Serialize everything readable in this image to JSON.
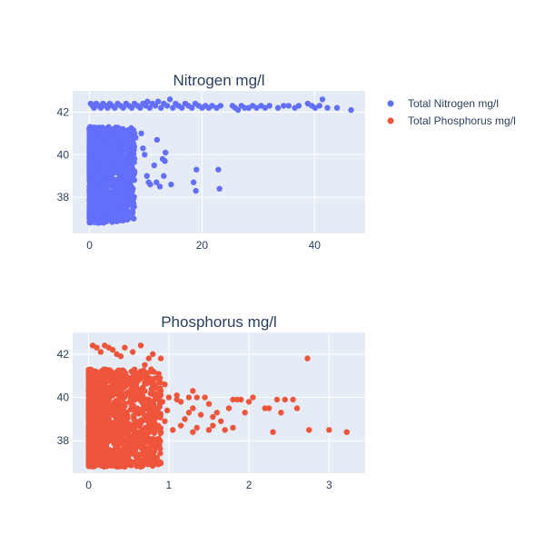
{
  "chart_data": [
    {
      "type": "scatter",
      "title": "Nitrogen mg/l",
      "xlabel": "",
      "ylabel": "",
      "xlim": [
        -3,
        49
      ],
      "ylim": [
        36.3,
        43.0
      ],
      "xticks": [
        0,
        20,
        40
      ],
      "yticks": [
        38,
        40,
        42
      ],
      "grid": true,
      "series": [
        {
          "name": "Total Nitrogen mg/l",
          "color": "#636efa",
          "points": [
            [
              0.2,
              42.4
            ],
            [
              0.5,
              42.3
            ],
            [
              0.8,
              42.2
            ],
            [
              1.2,
              42.4
            ],
            [
              1.6,
              42.3
            ],
            [
              2.0,
              42.2
            ],
            [
              2.4,
              42.4
            ],
            [
              2.8,
              42.3
            ],
            [
              3.2,
              42.2
            ],
            [
              3.6,
              42.4
            ],
            [
              4.0,
              42.3
            ],
            [
              4.5,
              42.2
            ],
            [
              5.0,
              42.4
            ],
            [
              5.5,
              42.3
            ],
            [
              6.0,
              42.2
            ],
            [
              6.5,
              42.4
            ],
            [
              7.0,
              42.3
            ],
            [
              7.5,
              42.2
            ],
            [
              8.0,
              42.4
            ],
            [
              8.5,
              42.3
            ],
            [
              9.0,
              42.2
            ],
            [
              9.5,
              42.4
            ],
            [
              10.0,
              42.3
            ],
            [
              10.3,
              42.5
            ],
            [
              10.7,
              42.2
            ],
            [
              11.2,
              42.4
            ],
            [
              11.7,
              42.3
            ],
            [
              12.2,
              42.5
            ],
            [
              12.7,
              42.2
            ],
            [
              13.2,
              42.4
            ],
            [
              13.8,
              42.3
            ],
            [
              14.3,
              42.6
            ],
            [
              14.8,
              42.2
            ],
            [
              15.3,
              42.4
            ],
            [
              15.8,
              42.3
            ],
            [
              16.4,
              42.2
            ],
            [
              17.0,
              42.4
            ],
            [
              17.6,
              42.3
            ],
            [
              18.2,
              42.2
            ],
            [
              18.8,
              42.4
            ],
            [
              19.4,
              42.3
            ],
            [
              20.0,
              42.2
            ],
            [
              20.6,
              42.3
            ],
            [
              21.2,
              42.2
            ],
            [
              21.8,
              42.3
            ],
            [
              22.6,
              42.2
            ],
            [
              23.3,
              42.3
            ],
            [
              25.4,
              42.3
            ],
            [
              25.9,
              42.2
            ],
            [
              26.4,
              42.1
            ],
            [
              27.0,
              42.3
            ],
            [
              27.6,
              42.2
            ],
            [
              28.3,
              42.2
            ],
            [
              29.0,
              42.3
            ],
            [
              29.7,
              42.2
            ],
            [
              30.5,
              42.3
            ],
            [
              31.2,
              42.2
            ],
            [
              32.0,
              42.3
            ],
            [
              33.5,
              42.2
            ],
            [
              34.5,
              42.3
            ],
            [
              35.4,
              42.3
            ],
            [
              36.5,
              42.2
            ],
            [
              37.2,
              42.3
            ],
            [
              38.8,
              42.4
            ],
            [
              39.5,
              42.3
            ],
            [
              40.1,
              42.2
            ],
            [
              40.9,
              42.3
            ],
            [
              41.4,
              42.6
            ],
            [
              42.3,
              42.2
            ],
            [
              44.0,
              42.2
            ],
            [
              46.5,
              42.1
            ],
            [
              22.9,
              39.3
            ],
            [
              19.0,
              39.3
            ],
            [
              18.5,
              38.7
            ],
            [
              18.9,
              38.3
            ],
            [
              23.1,
              38.4
            ],
            [
              14.5,
              38.6
            ],
            [
              13.2,
              39.0
            ],
            [
              11.9,
              38.7
            ],
            [
              13.4,
              39.7
            ],
            [
              13.5,
              40.1
            ],
            [
              13.0,
              39.8
            ],
            [
              12.0,
              40.7
            ],
            [
              11.5,
              39.5
            ],
            [
              12.5,
              38.5
            ],
            [
              9.8,
              40.0
            ],
            [
              10.2,
              39.0
            ],
            [
              10.8,
              38.6
            ],
            [
              10.5,
              38.7
            ],
            [
              9.5,
              40.3
            ],
            [
              9.2,
              41.0
            ],
            [
              8.2,
              40.8
            ],
            [
              8.0,
              39.2
            ],
            [
              7.5,
              38.9
            ],
            [
              7.6,
              40.5
            ],
            [
              6.8,
              40.2
            ],
            [
              6.5,
              38.3
            ],
            [
              6.0,
              37.8
            ],
            [
              7.8,
              37.9
            ],
            [
              5.8,
              37.3
            ],
            [
              4.5,
              37.5
            ],
            [
              3.5,
              37.0
            ],
            [
              2.5,
              36.8
            ],
            [
              3.4,
              41.3
            ],
            [
              4.8,
              41.0
            ],
            [
              3.3,
              40.6
            ],
            [
              5.8,
              41.0
            ],
            [
              8.0,
              41.0
            ],
            [
              0.6,
              38.0
            ],
            [
              5.3,
              38.4
            ]
          ]
        },
        {
          "name": "Total Phosphorus mg/l",
          "color": "#ef553b",
          "points": []
        }
      ],
      "dense_region": {
        "x": [
          0,
          8
        ],
        "y": [
          36.8,
          41.3
        ]
      }
    },
    {
      "type": "scatter",
      "title": "Phosphorus mg/l",
      "xlabel": "",
      "ylabel": "",
      "xlim": [
        -0.2,
        3.45
      ],
      "ylim": [
        36.5,
        43.0
      ],
      "xticks": [
        0,
        1,
        2,
        3
      ],
      "yticks": [
        38,
        40,
        42
      ],
      "grid": true,
      "series": [
        {
          "name": "Total Phosphorus mg/l",
          "color": "#ef553b",
          "points": [
            [
              0.05,
              42.4
            ],
            [
              0.1,
              42.3
            ],
            [
              0.15,
              42.1
            ],
            [
              0.2,
              42.4
            ],
            [
              0.25,
              42.3
            ],
            [
              0.3,
              42.2
            ],
            [
              0.35,
              42.0
            ],
            [
              0.4,
              41.9
            ],
            [
              0.45,
              42.3
            ],
            [
              0.55,
              42.1
            ],
            [
              0.65,
              42.4
            ],
            [
              0.75,
              41.8
            ],
            [
              0.8,
              42.0
            ],
            [
              0.9,
              41.8
            ],
            [
              0.7,
              41.5
            ],
            [
              0.65,
              41.2
            ],
            [
              0.6,
              41.0
            ],
            [
              2.73,
              41.8
            ],
            [
              3.22,
              38.4
            ],
            [
              3.0,
              38.5
            ],
            [
              2.75,
              38.5
            ],
            [
              2.6,
              39.5
            ],
            [
              2.55,
              39.9
            ],
            [
              2.45,
              39.9
            ],
            [
              2.35,
              39.9
            ],
            [
              2.4,
              39.3
            ],
            [
              2.3,
              38.4
            ],
            [
              2.25,
              39.5
            ],
            [
              2.2,
              39.5
            ],
            [
              2.05,
              40.0
            ],
            [
              2.0,
              39.8
            ],
            [
              1.95,
              39.3
            ],
            [
              1.9,
              39.9
            ],
            [
              1.85,
              39.9
            ],
            [
              1.8,
              39.9
            ],
            [
              1.8,
              38.6
            ],
            [
              1.75,
              39.5
            ],
            [
              1.7,
              38.5
            ],
            [
              1.65,
              38.9
            ],
            [
              1.6,
              39.3
            ],
            [
              1.55,
              38.7
            ],
            [
              1.55,
              39.1
            ],
            [
              1.5,
              39.7
            ],
            [
              1.5,
              38.5
            ],
            [
              1.45,
              40.0
            ],
            [
              1.4,
              39.2
            ],
            [
              1.35,
              38.6
            ],
            [
              1.35,
              40.0
            ],
            [
              1.3,
              39.5
            ],
            [
              1.3,
              38.4
            ],
            [
              1.25,
              40.0
            ],
            [
              1.2,
              39.0
            ],
            [
              1.15,
              39.8
            ],
            [
              1.15,
              38.7
            ],
            [
              1.1,
              39.9
            ],
            [
              1.05,
              38.5
            ],
            [
              1.0,
              40.0
            ],
            [
              0.98,
              39.4
            ],
            [
              0.95,
              38.9
            ],
            [
              0.92,
              39.8
            ],
            [
              0.9,
              38.4
            ],
            [
              0.88,
              40.2
            ],
            [
              0.85,
              39.1
            ],
            [
              0.82,
              37.9
            ],
            [
              0.8,
              40.5
            ],
            [
              0.78,
              37.6
            ],
            [
              0.75,
              38.7
            ],
            [
              0.72,
              37.3
            ],
            [
              0.7,
              40.3
            ],
            [
              0.65,
              36.8
            ],
            [
              0.6,
              37.4
            ],
            [
              0.55,
              37.0
            ],
            [
              0.5,
              36.9
            ],
            [
              0.45,
              36.8
            ],
            [
              0.4,
              40.7
            ],
            [
              1.3,
              40.3
            ],
            [
              1.1,
              40.1
            ],
            [
              0.95,
              40.6
            ],
            [
              0.9,
              40.3
            ],
            [
              1.25,
              39.3
            ]
          ]
        }
      ],
      "dense_region": {
        "x": [
          0,
          0.9
        ],
        "y": [
          36.8,
          41.3
        ]
      }
    }
  ]
}
